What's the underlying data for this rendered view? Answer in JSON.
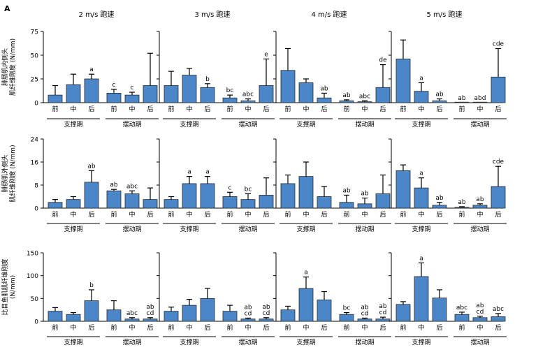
{
  "panel_label": "A",
  "columns": [
    "2 m/s 跑速",
    "3 m/s 跑速",
    "4 m/s 跑速",
    "5 m/s 跑速"
  ],
  "row_ylabels": [
    [
      "腓肠肌内侧头",
      "肌纤维刚度 (N/mm)"
    ],
    [
      "腓肠肌外侧头",
      "肌纤维刚度 (N/mm)"
    ],
    [
      "比目鱼肌肌纤维刚度",
      "(N/mm)"
    ]
  ],
  "bar_labels": [
    "前",
    "中",
    "后",
    "前",
    "中",
    "后"
  ],
  "group_labels": [
    "支撑期",
    "摆动期"
  ],
  "chart_data": [
    {
      "type": "bar",
      "row": 0,
      "ylim": [
        0,
        75
      ],
      "yticks": [
        0,
        25,
        50,
        75
      ],
      "panels": [
        {
          "title": "2 m/s 跑速",
          "values": [
            8,
            19,
            25,
            10,
            8,
            18
          ],
          "errors": [
            10,
            11,
            5,
            4,
            3,
            34
          ],
          "letters": [
            "",
            "",
            "a",
            "c",
            "c",
            ""
          ]
        },
        {
          "title": "3 m/s 跑速",
          "values": [
            18,
            29,
            16,
            5,
            2,
            18
          ],
          "errors": [
            15,
            7,
            4,
            3,
            2,
            28
          ],
          "letters": [
            "",
            "",
            "b",
            "bc",
            "abc",
            "e"
          ]
        },
        {
          "title": "4 m/s 跑速",
          "values": [
            34,
            21,
            5,
            2,
            1,
            16
          ],
          "errors": [
            23,
            4,
            5,
            1,
            1,
            24
          ],
          "letters": [
            "",
            "",
            "ab",
            "ab",
            "abc",
            "de"
          ]
        },
        {
          "title": "5 m/s 跑速",
          "values": [
            46,
            12,
            2,
            0,
            0,
            27
          ],
          "errors": [
            20,
            9,
            2,
            0,
            0,
            30
          ],
          "letters": [
            "",
            "a",
            "ab",
            "ab",
            "abd",
            "cde"
          ]
        }
      ]
    },
    {
      "type": "bar",
      "row": 1,
      "ylim": [
        0,
        24
      ],
      "yticks": [
        0,
        8,
        16,
        24
      ],
      "panels": [
        {
          "title": "2 m/s 跑速",
          "values": [
            2,
            3,
            9,
            6,
            5,
            3
          ],
          "errors": [
            1,
            1,
            4,
            0.5,
            1,
            4
          ],
          "letters": [
            "",
            "",
            "ab",
            "ab",
            "abc",
            ""
          ]
        },
        {
          "title": "3 m/s 跑速",
          "values": [
            3,
            8.5,
            8.5,
            4,
            3,
            4.5
          ],
          "errors": [
            1,
            2.5,
            2.5,
            1.5,
            2,
            6
          ],
          "letters": [
            "",
            "a",
            "a",
            "c",
            "bc",
            ""
          ]
        },
        {
          "title": "4 m/s 跑速",
          "values": [
            8.5,
            11,
            4,
            2,
            1.5,
            5
          ],
          "errors": [
            3,
            5,
            3.5,
            2.5,
            2,
            6.5
          ],
          "letters": [
            "",
            "",
            "",
            "ab",
            "ab",
            ""
          ]
        },
        {
          "title": "5 m/s 跑速",
          "values": [
            13,
            7,
            1,
            0.3,
            1,
            7.5
          ],
          "errors": [
            2,
            3.5,
            1,
            0.2,
            0.5,
            7
          ],
          "letters": [
            "",
            "a",
            "ab",
            "ab",
            "ab",
            "cde"
          ]
        }
      ]
    },
    {
      "type": "bar",
      "row": 2,
      "ylim": [
        0,
        150
      ],
      "yticks": [
        0,
        50,
        100,
        150
      ],
      "panels": [
        {
          "title": "2 m/s 跑速",
          "values": [
            22,
            15,
            45,
            25,
            5,
            5
          ],
          "errors": [
            8,
            4,
            24,
            20,
            3,
            3
          ],
          "letters": [
            "",
            "",
            "b",
            "",
            "abc",
            "ab cd"
          ]
        },
        {
          "title": "3 m/s 跑速",
          "values": [
            22,
            35,
            50,
            22,
            5,
            5
          ],
          "errors": [
            9,
            13,
            22,
            13,
            2,
            3
          ],
          "letters": [
            "",
            "",
            "",
            "",
            "ab cd",
            "ab cd"
          ]
        },
        {
          "title": "4 m/s 跑速",
          "values": [
            25,
            72,
            47,
            15,
            5,
            5
          ],
          "errors": [
            8,
            25,
            18,
            4,
            2,
            4
          ],
          "letters": [
            "",
            "a",
            "",
            "bc",
            "ab cd",
            "ab cd"
          ]
        },
        {
          "title": "5 m/s 跑速",
          "values": [
            37,
            98,
            51,
            15,
            8,
            10
          ],
          "errors": [
            6,
            30,
            18,
            5,
            3,
            7
          ],
          "letters": [
            "",
            "a",
            "",
            "abc",
            "ab cd",
            "abc"
          ]
        }
      ]
    }
  ]
}
